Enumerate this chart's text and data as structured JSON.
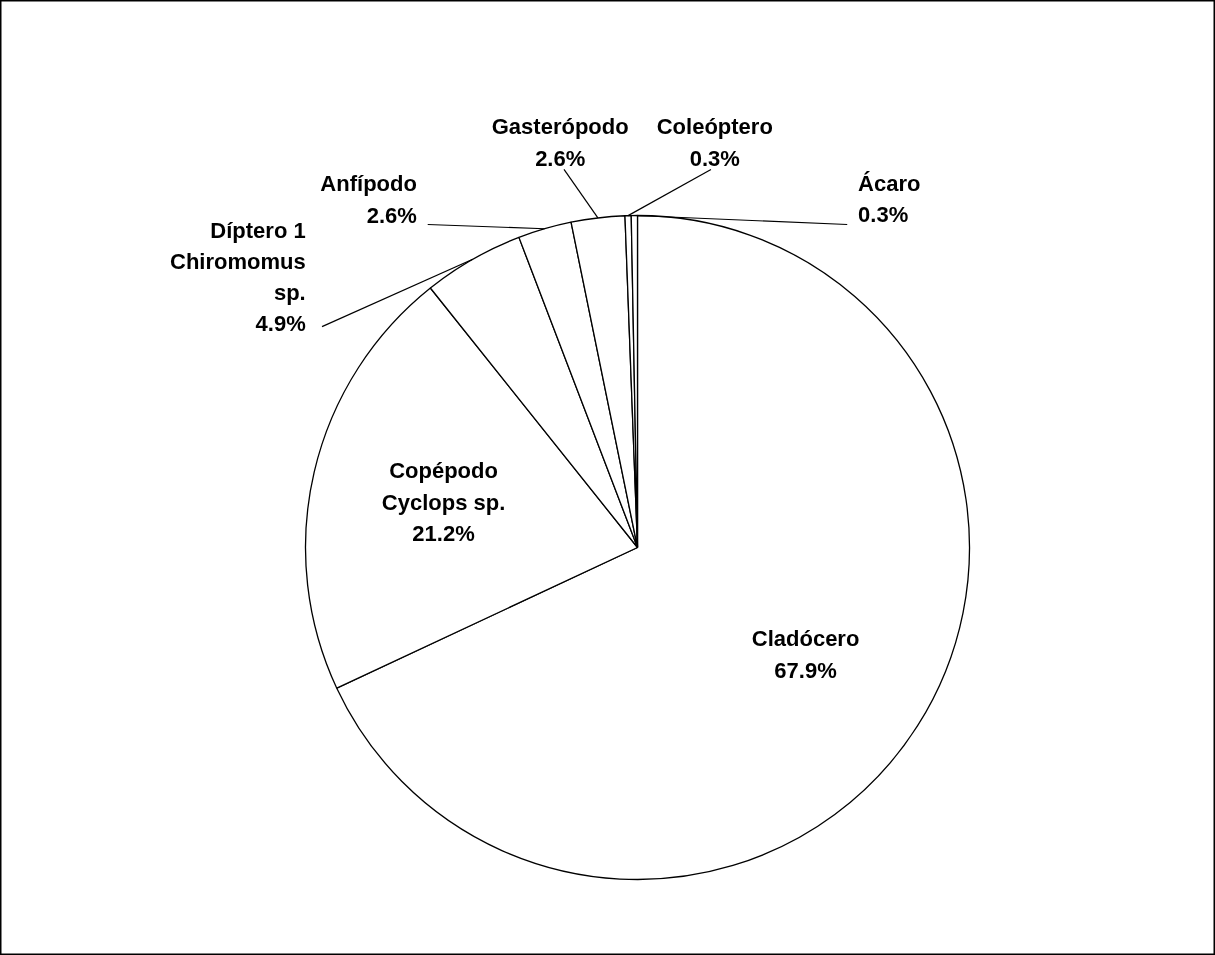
{
  "chart_data": {
    "type": "pie",
    "categories": [
      "Cladócero",
      "Copépodo\nCyclops sp.",
      "Díptero 1\nChiromomus\nsp.",
      "Anfípodo",
      "Gasterópodo",
      "Coleóptero",
      "Ácaro"
    ],
    "values": [
      67.9,
      21.2,
      4.9,
      2.6,
      2.6,
      0.3,
      0.3
    ],
    "value_labels": [
      "67.9%",
      "21.2%",
      "4.9%",
      "2.6%",
      "2.6%",
      "0.3%",
      "0.3%"
    ],
    "colors": [
      "#ffffff",
      "#ffffff",
      "#ffffff",
      "#ffffff",
      "#ffffff",
      "#ffffff",
      "#ffffff"
    ]
  }
}
